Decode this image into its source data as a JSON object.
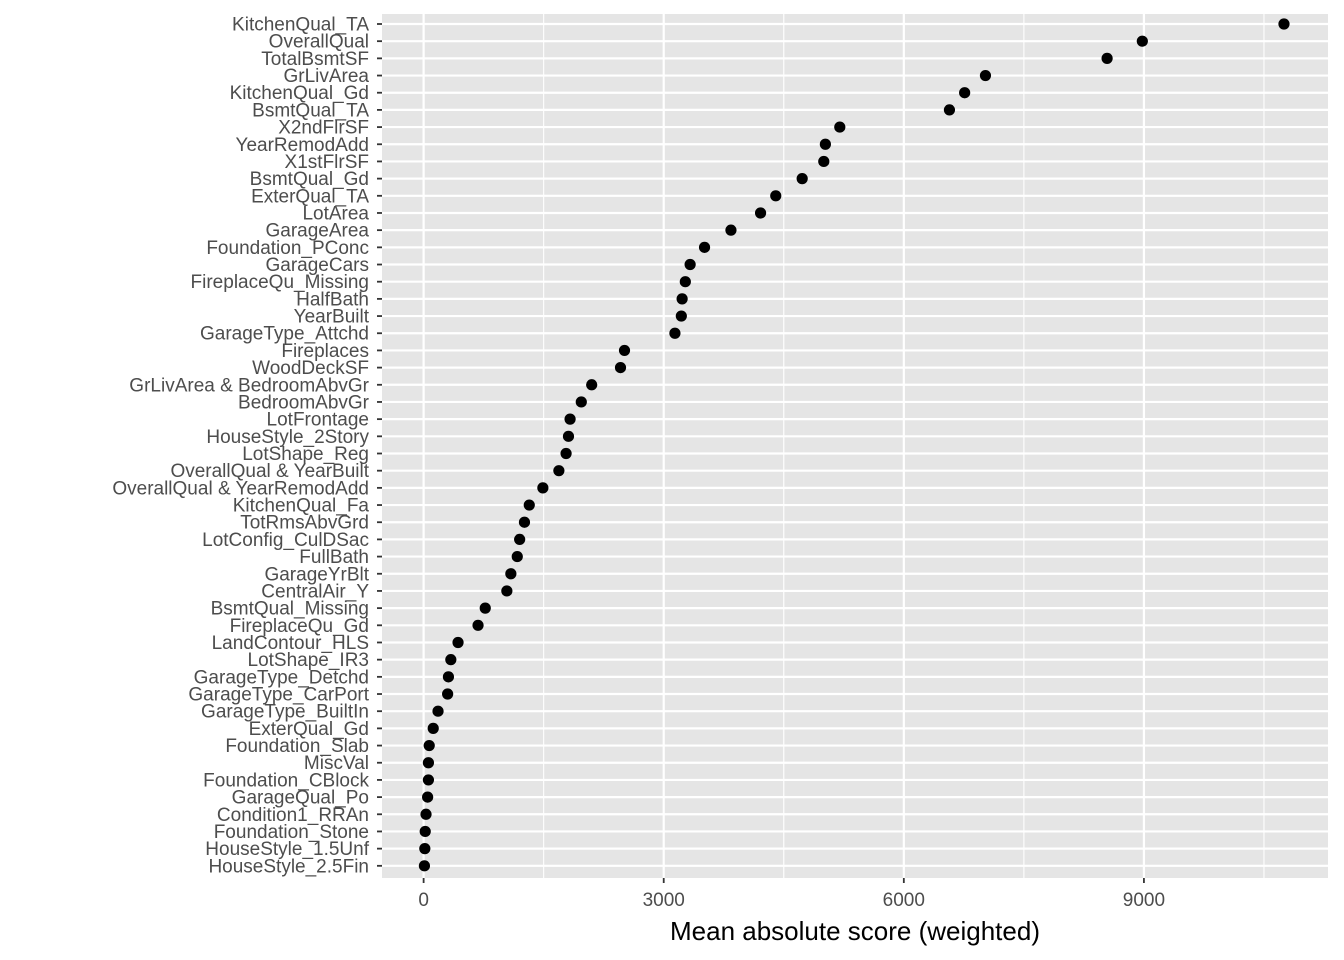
{
  "chart_data": {
    "type": "scatter",
    "title": "",
    "xlabel": "Mean absolute score (weighted)",
    "ylabel": "",
    "xlim": [
      -520,
      11300
    ],
    "xticks": [
      0,
      3000,
      6000,
      9000
    ],
    "xtick_labels": [
      "0",
      "3000",
      "6000",
      "9000"
    ],
    "grid": true,
    "legend": "none",
    "colors": {
      "panel": "#e5e5e5",
      "grid": "#ffffff",
      "point": "#000000",
      "tick": "#333333"
    },
    "points": [
      {
        "label": "KitchenQual_TA",
        "value": 10750
      },
      {
        "label": "OverallQual",
        "value": 8980
      },
      {
        "label": "TotalBsmtSF",
        "value": 8540
      },
      {
        "label": "GrLivArea",
        "value": 7020
      },
      {
        "label": "KitchenQual_Gd",
        "value": 6760
      },
      {
        "label": "BsmtQual_TA",
        "value": 6570
      },
      {
        "label": "X2ndFlrSF",
        "value": 5200
      },
      {
        "label": "YearRemodAdd",
        "value": 5020
      },
      {
        "label": "X1stFlrSF",
        "value": 5000
      },
      {
        "label": "BsmtQual_Gd",
        "value": 4730
      },
      {
        "label": "ExterQual_TA",
        "value": 4400
      },
      {
        "label": "LotArea",
        "value": 4210
      },
      {
        "label": "GarageArea",
        "value": 3840
      },
      {
        "label": "Foundation_PConc",
        "value": 3510
      },
      {
        "label": "GarageCars",
        "value": 3330
      },
      {
        "label": "FireplaceQu_Missing",
        "value": 3270
      },
      {
        "label": "HalfBath",
        "value": 3230
      },
      {
        "label": "YearBuilt",
        "value": 3220
      },
      {
        "label": "GarageType_Attchd",
        "value": 3140
      },
      {
        "label": "Fireplaces",
        "value": 2510
      },
      {
        "label": "WoodDeckSF",
        "value": 2460
      },
      {
        "label": "GrLivArea & BedroomAbvGr",
        "value": 2100
      },
      {
        "label": "BedroomAbvGr",
        "value": 1970
      },
      {
        "label": "LotFrontage",
        "value": 1830
      },
      {
        "label": "HouseStyle_2Story",
        "value": 1810
      },
      {
        "label": "LotShape_Reg",
        "value": 1780
      },
      {
        "label": "OverallQual & YearBuilt",
        "value": 1690
      },
      {
        "label": "OverallQual & YearRemodAdd",
        "value": 1490
      },
      {
        "label": "KitchenQual_Fa",
        "value": 1320
      },
      {
        "label": "TotRmsAbvGrd",
        "value": 1260
      },
      {
        "label": "LotConfig_CulDSac",
        "value": 1200
      },
      {
        "label": "FullBath",
        "value": 1170
      },
      {
        "label": "GarageYrBlt",
        "value": 1090
      },
      {
        "label": "CentralAir_Y",
        "value": 1040
      },
      {
        "label": "BsmtQual_Missing",
        "value": 770
      },
      {
        "label": "FireplaceQu_Gd",
        "value": 680
      },
      {
        "label": "LandContour_HLS",
        "value": 430
      },
      {
        "label": "LotShape_IR3",
        "value": 340
      },
      {
        "label": "GarageType_Detchd",
        "value": 310
      },
      {
        "label": "GarageType_CarPort",
        "value": 300
      },
      {
        "label": "GarageType_BuiltIn",
        "value": 180
      },
      {
        "label": "ExterQual_Gd",
        "value": 120
      },
      {
        "label": "Foundation_Slab",
        "value": 70
      },
      {
        "label": "MiscVal",
        "value": 60
      },
      {
        "label": "Foundation_CBlock",
        "value": 60
      },
      {
        "label": "GarageQual_Po",
        "value": 50
      },
      {
        "label": "Condition1_RRAn",
        "value": 30
      },
      {
        "label": "Foundation_Stone",
        "value": 20
      },
      {
        "label": "HouseStyle_1.5Unf",
        "value": 15
      },
      {
        "label": "HouseStyle_2.5Fin",
        "value": 10
      }
    ]
  }
}
